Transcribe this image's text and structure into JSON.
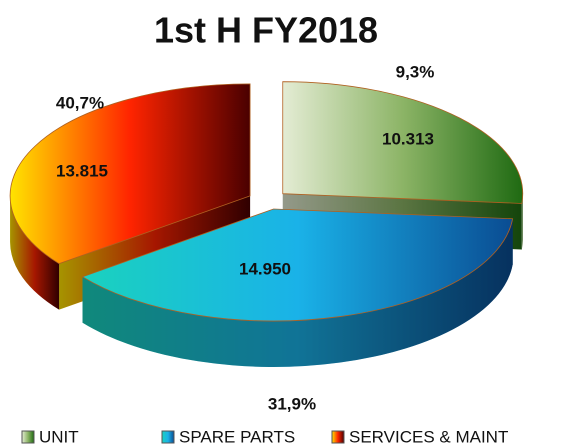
{
  "chart_data": {
    "type": "pie3d",
    "title": "1st H FY2018",
    "categories": [
      "UNIT",
      "SPARE PARTS",
      "SERVICES & MAINT"
    ],
    "values": [
      10313,
      14950,
      13815
    ],
    "value_labels": [
      "10.313",
      "14.950",
      "13.815"
    ],
    "annotations": [
      "9,3%",
      "31,9%",
      "40,7%"
    ],
    "colors": [
      [
        "#e4ecd4",
        "#8cb466",
        "#1f6a12"
      ],
      [
        "#1ad2be",
        "#1ab2e8",
        "#0a4c92"
      ],
      [
        "#ffe400",
        "#ff2400",
        "#4a0000"
      ]
    ],
    "legend": "bottom"
  }
}
